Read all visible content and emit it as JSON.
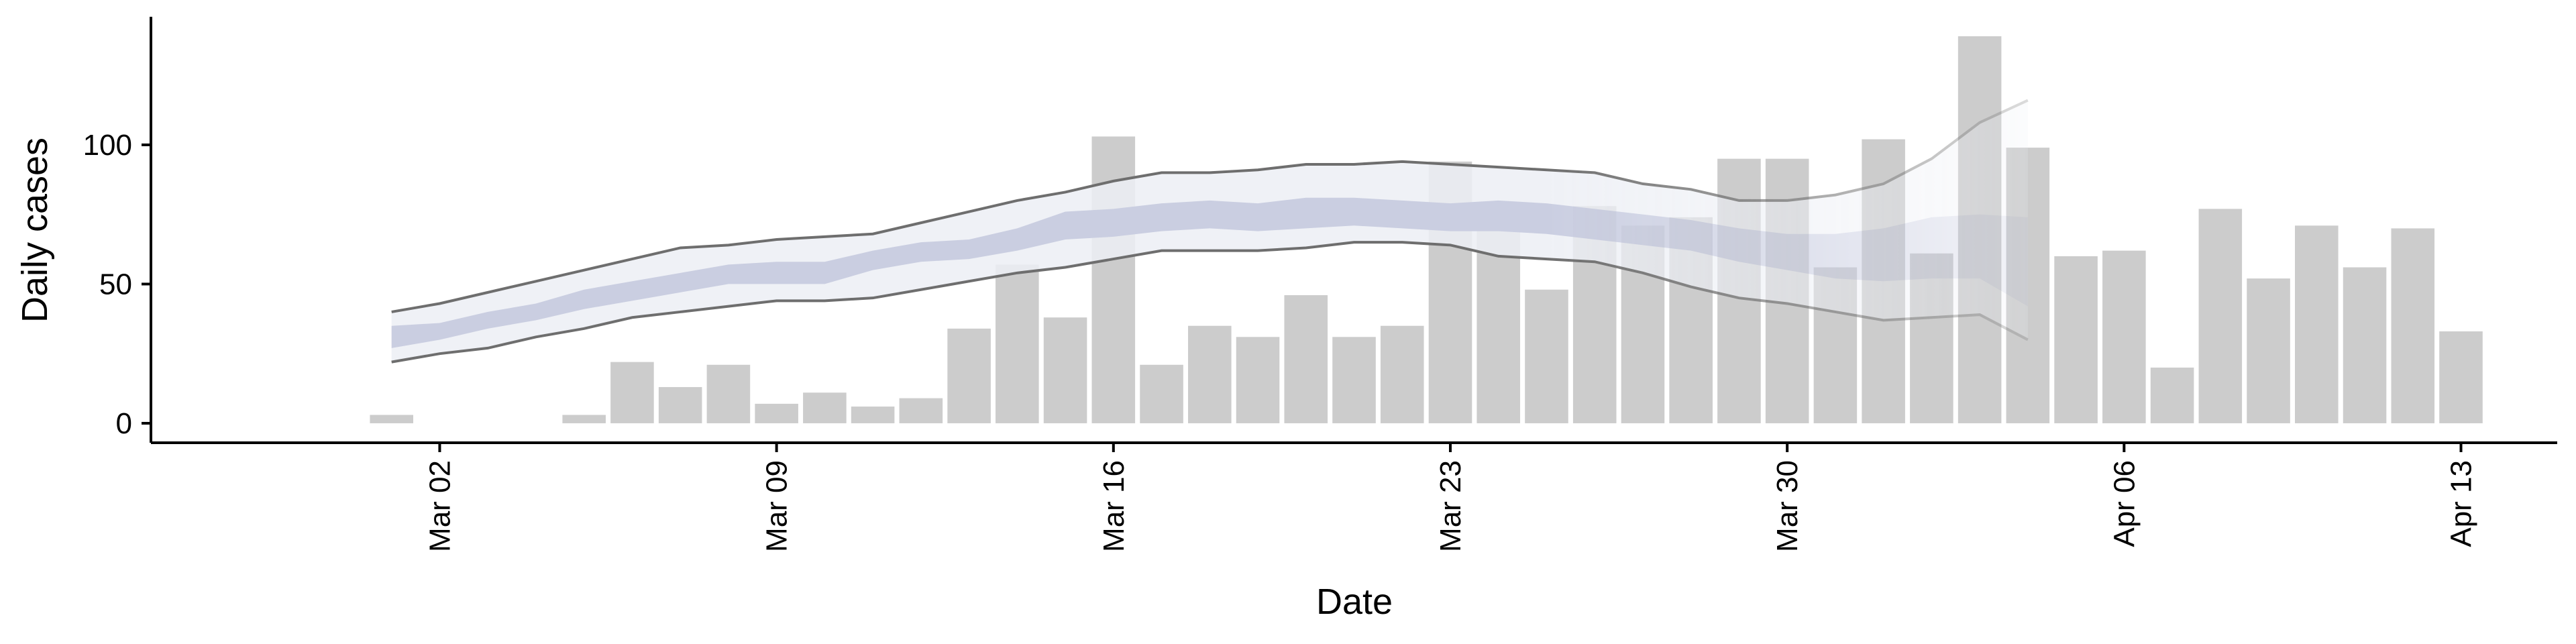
{
  "chart_data": {
    "type": "bar",
    "xlabel": "Date",
    "ylabel": "Daily cases",
    "x_tick_labels": [
      "Mar 02",
      "Mar 09",
      "Mar 16",
      "Mar 23",
      "Mar 30",
      "Apr 06",
      "Apr 13"
    ],
    "x_tick_dates": [
      "2020-03-02",
      "2020-03-09",
      "2020-03-16",
      "2020-03-23",
      "2020-03-30",
      "2020-04-06",
      "2020-04-13"
    ],
    "y_ticks": [
      0,
      50,
      100
    ],
    "xlim": [
      "2020-02-25",
      "2020-04-15"
    ],
    "ylim": [
      -7,
      146
    ],
    "grid": false,
    "colors": {
      "bars": "#cccccc",
      "outer_band": "#eceef5",
      "inner_band": "#c6cbdf",
      "band_edge": "#6e6e6e"
    },
    "bars": {
      "dates": [
        "2020-03-01",
        "2020-03-02",
        "2020-03-03",
        "2020-03-04",
        "2020-03-05",
        "2020-03-06",
        "2020-03-07",
        "2020-03-08",
        "2020-03-09",
        "2020-03-10",
        "2020-03-11",
        "2020-03-12",
        "2020-03-13",
        "2020-03-14",
        "2020-03-15",
        "2020-03-16",
        "2020-03-17",
        "2020-03-18",
        "2020-03-19",
        "2020-03-20",
        "2020-03-21",
        "2020-03-22",
        "2020-03-23",
        "2020-03-24",
        "2020-03-25",
        "2020-03-26",
        "2020-03-27",
        "2020-03-28",
        "2020-03-29",
        "2020-03-30",
        "2020-03-31",
        "2020-04-01",
        "2020-04-02",
        "2020-04-03",
        "2020-04-04",
        "2020-04-05",
        "2020-04-06",
        "2020-04-07",
        "2020-04-08",
        "2020-04-09",
        "2020-04-10",
        "2020-04-11",
        "2020-04-12",
        "2020-04-13"
      ],
      "values": [
        3,
        0,
        0,
        0,
        3,
        22,
        13,
        21,
        7,
        11,
        6,
        9,
        34,
        57,
        38,
        103,
        21,
        35,
        31,
        46,
        31,
        35,
        94,
        71,
        48,
        78,
        71,
        74,
        95,
        95,
        56,
        102,
        61,
        139,
        99,
        60,
        62,
        20,
        77,
        52,
        71,
        56,
        70,
        33
      ]
    },
    "bands": {
      "dates": [
        "2020-03-01",
        "2020-03-02",
        "2020-03-03",
        "2020-03-04",
        "2020-03-05",
        "2020-03-06",
        "2020-03-07",
        "2020-03-08",
        "2020-03-09",
        "2020-03-10",
        "2020-03-11",
        "2020-03-12",
        "2020-03-13",
        "2020-03-14",
        "2020-03-15",
        "2020-03-16",
        "2020-03-17",
        "2020-03-18",
        "2020-03-19",
        "2020-03-20",
        "2020-03-21",
        "2020-03-22",
        "2020-03-23",
        "2020-03-24",
        "2020-03-25",
        "2020-03-26",
        "2020-03-27",
        "2020-03-28",
        "2020-03-29",
        "2020-03-30",
        "2020-03-31",
        "2020-04-01",
        "2020-04-02",
        "2020-04-03",
        "2020-04-04"
      ],
      "outer_lower": [
        22,
        25,
        27,
        31,
        34,
        38,
        40,
        42,
        44,
        44,
        45,
        48,
        51,
        54,
        56,
        59,
        62,
        62,
        62,
        63,
        65,
        65,
        64,
        60,
        59,
        58,
        54,
        49,
        45,
        43,
        40,
        37,
        38,
        39,
        30
      ],
      "outer_upper": [
        40,
        43,
        47,
        51,
        55,
        59,
        63,
        64,
        66,
        67,
        68,
        72,
        76,
        80,
        83,
        87,
        90,
        90,
        91,
        93,
        93,
        94,
        93,
        92,
        91,
        90,
        86,
        84,
        80,
        80,
        82,
        86,
        95,
        108,
        116
      ],
      "inner_lower": [
        27,
        30,
        34,
        37,
        41,
        44,
        47,
        50,
        50,
        50,
        55,
        58,
        59,
        62,
        66,
        67,
        69,
        70,
        69,
        70,
        71,
        70,
        69,
        69,
        68,
        66,
        64,
        62,
        58,
        55,
        52,
        51,
        52,
        52,
        42
      ],
      "inner_upper": [
        35,
        36,
        40,
        43,
        48,
        51,
        54,
        57,
        58,
        58,
        62,
        65,
        66,
        70,
        76,
        77,
        79,
        80,
        79,
        81,
        81,
        80,
        79,
        80,
        79,
        77,
        75,
        73,
        70,
        68,
        68,
        70,
        74,
        75,
        74
      ]
    }
  }
}
